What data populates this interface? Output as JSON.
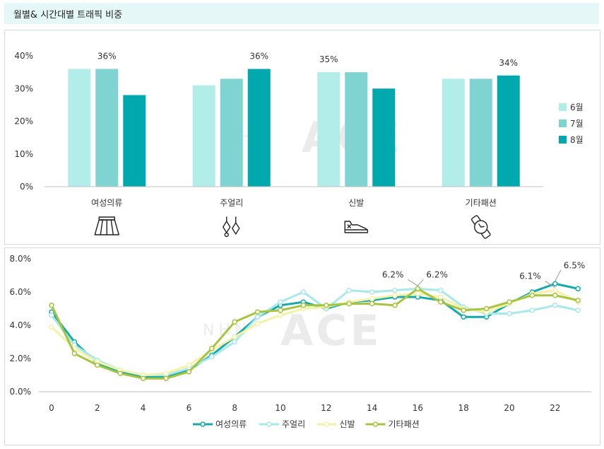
{
  "header": {
    "title": "월별& 시간대별 트래픽 비중"
  },
  "watermark": "ACE",
  "chart_data": [
    {
      "type": "bar",
      "categories": [
        "여성의류",
        "주얼리",
        "신발",
        "기타패션"
      ],
      "series": [
        {
          "name": "6월",
          "values": [
            36,
            31,
            35,
            33
          ],
          "color": "#b2ede9"
        },
        {
          "name": "7월",
          "values": [
            36,
            33,
            35,
            33
          ],
          "color": "#7fd3d0"
        },
        {
          "name": "8월",
          "values": [
            28,
            36,
            30,
            34
          ],
          "color": "#00a9ae"
        }
      ],
      "ylim": [
        0,
        40
      ],
      "yticks": [
        "0%",
        "10%",
        "20%",
        "30%",
        "40%"
      ],
      "data_labels": [
        {
          "text": "36%",
          "category": 0,
          "series": 1
        },
        {
          "text": "36%",
          "category": 1,
          "series": 2
        },
        {
          "text": "35%",
          "category": 2,
          "series": 0
        },
        {
          "text": "34%",
          "category": 3,
          "series": 2
        }
      ],
      "category_icons": [
        "skirt-icon",
        "earrings-icon",
        "sneaker-icon",
        "watch-icon"
      ],
      "legend_position": "right",
      "grid": false
    },
    {
      "type": "line",
      "x": [
        0,
        1,
        2,
        3,
        4,
        5,
        6,
        7,
        8,
        9,
        10,
        11,
        12,
        13,
        14,
        15,
        16,
        17,
        18,
        19,
        20,
        21,
        22,
        23
      ],
      "xticks": [
        "0",
        "2",
        "4",
        "6",
        "8",
        "10",
        "12",
        "14",
        "16",
        "18",
        "20",
        "22"
      ],
      "yticks": [
        "0.0%",
        "2.0%",
        "4.0%",
        "6.0%",
        "8.0%"
      ],
      "ylim": [
        0,
        8
      ],
      "series": [
        {
          "name": "여성의류",
          "color": "#14a9aa",
          "values": [
            4.8,
            3.0,
            1.7,
            1.2,
            0.9,
            0.9,
            1.3,
            2.2,
            3.3,
            4.5,
            5.2,
            5.4,
            5.0,
            5.4,
            5.5,
            5.7,
            5.7,
            5.5,
            4.5,
            4.5,
            5.3,
            6.0,
            6.5,
            6.2
          ]
        },
        {
          "name": "주얼리",
          "color": "#a9e8ea",
          "values": [
            4.6,
            2.8,
            1.9,
            1.3,
            1.0,
            1.0,
            1.4,
            2.1,
            3.0,
            4.5,
            5.4,
            6.0,
            5.0,
            6.1,
            6.0,
            6.1,
            6.2,
            6.1,
            5.1,
            4.7,
            4.7,
            4.9,
            5.2,
            4.9
          ]
        },
        {
          "name": "신발",
          "color": "#f3f2a8",
          "values": [
            3.9,
            2.6,
            1.8,
            1.3,
            1.0,
            1.1,
            1.6,
            2.5,
            3.3,
            4.1,
            4.6,
            5.0,
            5.1,
            5.4,
            5.6,
            5.8,
            5.9,
            5.7,
            5.0,
            4.8,
            5.3,
            5.9,
            6.1,
            5.4
          ]
        },
        {
          "name": "기타패션",
          "color": "#a6c43e",
          "values": [
            5.2,
            2.3,
            1.6,
            1.1,
            0.8,
            0.8,
            1.2,
            2.6,
            4.2,
            4.8,
            4.9,
            5.2,
            5.2,
            5.3,
            5.3,
            5.2,
            6.2,
            5.4,
            4.9,
            5.0,
            5.4,
            5.8,
            5.8,
            5.5
          ]
        }
      ],
      "annotations": [
        {
          "text": "6.2%",
          "x": 16,
          "y": 6.2,
          "side": "left"
        },
        {
          "text": "6.2%",
          "x": 16,
          "y": 6.2,
          "side": "right"
        },
        {
          "text": "6.1%",
          "x": 22,
          "y": 6.1,
          "side": "left"
        },
        {
          "text": "6.5%",
          "x": 22,
          "y": 6.5,
          "side": "right"
        }
      ],
      "legend_position": "bottom",
      "grid": false
    }
  ]
}
